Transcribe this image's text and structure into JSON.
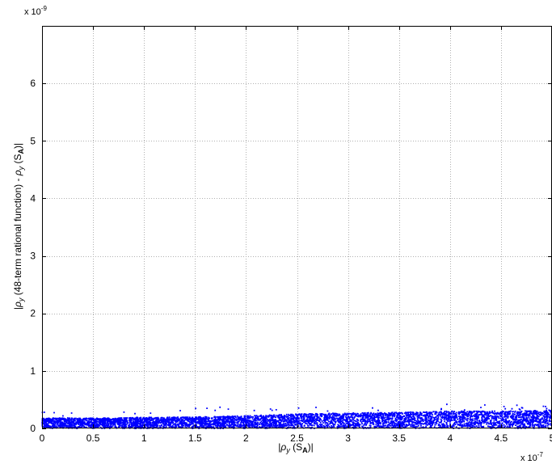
{
  "chart_data": {
    "type": "scatter",
    "title": "",
    "xlabel_parts": {
      "open": "|",
      "rho": "ρ",
      "sub_y": "y",
      "mid": " (S",
      "sub_A": "A",
      "close": ")|"
    },
    "ylabel_parts": {
      "open": "|",
      "rho1": "ρ",
      "sub_y1": "y",
      "mid1": " (48-term rational function) - ",
      "rho2": "ρ",
      "sub_y2": "y",
      "mid2": " (S",
      "sub_A": "A",
      "close": ")|"
    },
    "x_exponent": {
      "base": "x 10",
      "power": "-7"
    },
    "y_exponent": {
      "base": "x 10",
      "power": "-9"
    },
    "xlim": [
      0,
      5
    ],
    "ylim": [
      0,
      7
    ],
    "xticks": [
      0,
      0.5,
      1,
      1.5,
      2,
      2.5,
      3,
      3.5,
      4,
      4.5,
      5
    ],
    "xtick_labels": [
      "0",
      "0.5",
      "1",
      "1.5",
      "2",
      "2.5",
      "3",
      "3.5",
      "4",
      "4.5",
      "5"
    ],
    "yticks": [
      0,
      1,
      2,
      3,
      4,
      5,
      6
    ],
    "ytick_labels": [
      "0",
      "1",
      "2",
      "3",
      "4",
      "5",
      "6"
    ],
    "grid": true,
    "marker_color": "#0000ff",
    "n_points": 9000,
    "envelope": {
      "x": [
        0,
        0.5,
        1,
        1.5,
        2,
        2.5,
        3,
        3.5,
        4,
        4.5,
        5
      ],
      "typical_upper": [
        0.18,
        0.18,
        0.19,
        0.2,
        0.22,
        0.25,
        0.27,
        0.28,
        0.3,
        0.3,
        0.32
      ],
      "max_outlier": [
        0.3,
        0.33,
        0.35,
        0.35,
        0.4,
        0.38,
        0.4,
        0.42,
        0.45,
        0.48,
        0.4
      ]
    }
  }
}
